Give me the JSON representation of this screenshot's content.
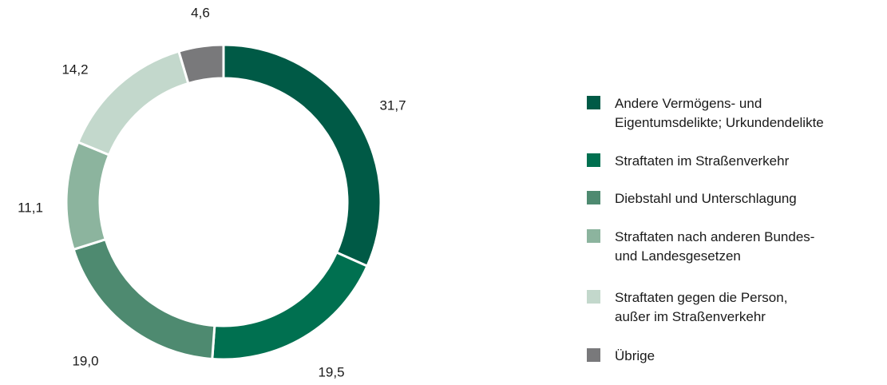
{
  "chart_data": {
    "type": "pie",
    "variant": "donut",
    "series": [
      {
        "name": "Andere Vermögens- und\nEigentumsdelikte; Urkundendelikte",
        "value": 31.7,
        "label": "31,7",
        "color": "#005a46"
      },
      {
        "name": "Straftaten im Straßenverkehr",
        "value": 19.5,
        "label": "19,5",
        "color": "#007050"
      },
      {
        "name": "Diebstahl und Unterschlagung",
        "value": 19.0,
        "label": "19,0",
        "color": "#4e8a70"
      },
      {
        "name": "Straftaten nach anderen Bundes-\nund Landesgesetzen",
        "value": 11.1,
        "label": "11,1",
        "color": "#8cb49e"
      },
      {
        "name": "Straftaten gegen die Person,\naußer im Straßenverkehr",
        "value": 14.2,
        "label": "14,2",
        "color": "#c3d8cc"
      },
      {
        "name": "Übrige",
        "value": 4.6,
        "label": "4,6",
        "color": "#79797b"
      }
    ],
    "legend_position": "right"
  }
}
